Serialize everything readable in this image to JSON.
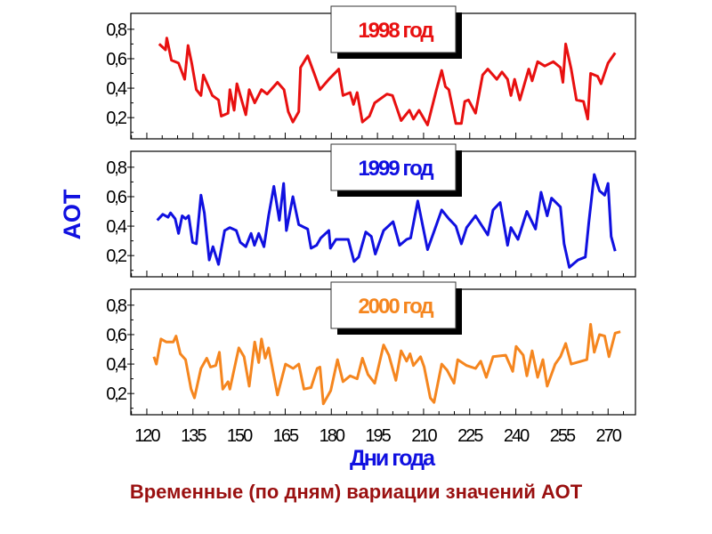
{
  "caption": "Временные (по дням) вариации значений АОТ",
  "chart_data": {
    "type": "line",
    "title": "Временные (по дням) вариации значений АОТ",
    "xlabel": "Дни года",
    "ylabel": "АОТ",
    "xlim": [
      114.8,
      278.9
    ],
    "ylim": [
      0.056,
      0.908
    ],
    "xticks": [
      "120",
      "135",
      "150",
      "165",
      "180",
      "195",
      "210",
      "225",
      "240",
      "255",
      "270"
    ],
    "xtick_values": [
      120,
      135,
      150,
      165,
      180,
      195,
      210,
      225,
      240,
      255,
      270
    ],
    "yticks": [
      "0,2",
      "0,4",
      "0,6",
      "0,8"
    ],
    "ytick_values": [
      0.2,
      0.4,
      0.6,
      0.8
    ],
    "grid": false,
    "panels": [
      {
        "name": "1998 год",
        "color": "#e81010",
        "x": [
          124,
          126.1,
          126.5,
          128,
          130.3,
          132.3,
          133.4,
          134.6,
          136.1,
          137.6,
          138.4,
          141.3,
          143.3,
          144.2,
          146.4,
          147,
          148.4,
          149.3,
          152.2,
          153.3,
          155.1,
          157.3,
          159.1,
          162.5,
          164.6,
          166,
          167.5,
          169.4,
          170,
          172.3,
          174.6,
          176.3,
          179.2,
          181.5,
          182.4,
          183.8,
          186.1,
          187.2,
          188.4,
          190.1,
          192.4,
          194.1,
          198.1,
          199.9,
          202.7,
          205.4,
          206.7,
          208.5,
          211.3,
          214.2,
          215.9,
          217.1,
          218.2,
          220.5,
          222.3,
          223.4,
          224.6,
          226.9,
          229.2,
          230.9,
          233.8,
          235.5,
          237.3,
          238.4,
          239.6,
          241.3,
          244.2,
          245.3,
          247.1,
          249.4,
          252.2,
          254.5,
          255.3,
          256.2,
          258,
          259.7,
          262,
          263.4,
          264.3,
          266.6,
          267.7,
          270,
          272.3
        ],
        "y": [
          0.7,
          0.66,
          0.74,
          0.59,
          0.57,
          0.46,
          0.69,
          0.57,
          0.39,
          0.35,
          0.49,
          0.35,
          0.32,
          0.21,
          0.23,
          0.39,
          0.25,
          0.43,
          0.22,
          0.39,
          0.3,
          0.39,
          0.36,
          0.44,
          0.39,
          0.24,
          0.17,
          0.24,
          0.54,
          0.62,
          0.49,
          0.39,
          0.46,
          0.51,
          0.53,
          0.35,
          0.37,
          0.29,
          0.37,
          0.17,
          0.21,
          0.3,
          0.36,
          0.35,
          0.18,
          0.25,
          0.19,
          0.25,
          0.15,
          0.39,
          0.52,
          0.41,
          0.39,
          0.16,
          0.16,
          0.31,
          0.32,
          0.23,
          0.49,
          0.53,
          0.46,
          0.51,
          0.46,
          0.35,
          0.46,
          0.32,
          0.53,
          0.45,
          0.58,
          0.55,
          0.58,
          0.54,
          0.44,
          0.7,
          0.53,
          0.32,
          0.31,
          0.19,
          0.5,
          0.48,
          0.43,
          0.57,
          0.64
        ]
      },
      {
        "name": "1999 год",
        "color": "#1010e0",
        "x": [
          123.4,
          125.2,
          126.9,
          127.7,
          129.2,
          130.3,
          131.5,
          132.6,
          133.6,
          134.9,
          136.1,
          137.6,
          138.7,
          140.3,
          141.5,
          143.3,
          145.3,
          147,
          149.1,
          150.4,
          152.2,
          153.9,
          155,
          156.4,
          158.1,
          159.6,
          161.3,
          163.1,
          164.5,
          165.4,
          167.5,
          169.4,
          172.3,
          173.4,
          175.2,
          176.6,
          179.2,
          179.7,
          181.5,
          185.5,
          187.4,
          188.9,
          191.2,
          193,
          194.3,
          197,
          200.1,
          202.2,
          204.5,
          205.8,
          208.1,
          211.3,
          215.9,
          218.2,
          220.5,
          222.3,
          224,
          226.9,
          230.9,
          232.6,
          234.9,
          237.3,
          238.4,
          240.7,
          243.6,
          246.4,
          248.2,
          250.2,
          251.6,
          254.5,
          255.7,
          257.4,
          260.2,
          262.6,
          263.7,
          265.5,
          267.2,
          268.9,
          270,
          271,
          272.3
        ],
        "y": [
          0.44,
          0.48,
          0.46,
          0.49,
          0.45,
          0.35,
          0.47,
          0.45,
          0.47,
          0.29,
          0.28,
          0.61,
          0.49,
          0.17,
          0.26,
          0.14,
          0.37,
          0.39,
          0.37,
          0.29,
          0.26,
          0.35,
          0.27,
          0.35,
          0.26,
          0.47,
          0.67,
          0.44,
          0.69,
          0.37,
          0.6,
          0.41,
          0.38,
          0.25,
          0.27,
          0.32,
          0.37,
          0.25,
          0.31,
          0.31,
          0.16,
          0.19,
          0.36,
          0.33,
          0.21,
          0.37,
          0.43,
          0.27,
          0.31,
          0.32,
          0.57,
          0.24,
          0.51,
          0.45,
          0.4,
          0.28,
          0.39,
          0.47,
          0.34,
          0.51,
          0.56,
          0.27,
          0.39,
          0.31,
          0.5,
          0.38,
          0.63,
          0.47,
          0.59,
          0.53,
          0.28,
          0.12,
          0.17,
          0.19,
          0.42,
          0.75,
          0.64,
          0.61,
          0.69,
          0.33,
          0.23
        ]
      },
      {
        "name": "2000 год",
        "color": "#f5861f",
        "x": [
          122.3,
          123.1,
          124.6,
          126.3,
          128.6,
          129.5,
          130.9,
          132.6,
          134.4,
          135.5,
          137.6,
          139.5,
          140.7,
          142.4,
          143.6,
          144.7,
          146.4,
          147,
          149.9,
          151.6,
          153.3,
          155.1,
          156.4,
          157.3,
          158.5,
          159.6,
          162.5,
          165.1,
          167.6,
          169.4,
          171.1,
          173.4,
          175.4,
          176.3,
          177.4,
          179.8,
          182,
          183.8,
          186.1,
          188.4,
          190.1,
          191.9,
          194.1,
          197,
          198.7,
          201,
          202.7,
          204.5,
          205.6,
          206.7,
          209,
          210.2,
          212.2,
          213.4,
          215.9,
          217.6,
          219.9,
          221.1,
          224,
          226.9,
          228.6,
          230.4,
          232.6,
          236.7,
          239,
          240.1,
          242.4,
          243.6,
          245.3,
          247.1,
          248.8,
          250.2,
          252.8,
          254.5,
          256.2,
          258,
          263.1,
          264.3,
          265.5,
          267.2,
          268.9,
          270.3,
          272.3,
          274
        ],
        "y": [
          0.45,
          0.4,
          0.57,
          0.55,
          0.55,
          0.59,
          0.47,
          0.43,
          0.23,
          0.17,
          0.37,
          0.44,
          0.38,
          0.39,
          0.48,
          0.23,
          0.28,
          0.23,
          0.51,
          0.45,
          0.25,
          0.55,
          0.41,
          0.57,
          0.44,
          0.51,
          0.19,
          0.4,
          0.37,
          0.4,
          0.23,
          0.24,
          0.37,
          0.38,
          0.13,
          0.22,
          0.43,
          0.28,
          0.32,
          0.3,
          0.44,
          0.33,
          0.27,
          0.53,
          0.46,
          0.29,
          0.49,
          0.42,
          0.47,
          0.39,
          0.45,
          0.38,
          0.17,
          0.14,
          0.4,
          0.36,
          0.27,
          0.43,
          0.39,
          0.37,
          0.42,
          0.31,
          0.45,
          0.46,
          0.35,
          0.52,
          0.46,
          0.32,
          0.49,
          0.31,
          0.43,
          0.25,
          0.4,
          0.45,
          0.54,
          0.4,
          0.43,
          0.67,
          0.48,
          0.6,
          0.59,
          0.45,
          0.61,
          0.62
        ]
      }
    ]
  }
}
